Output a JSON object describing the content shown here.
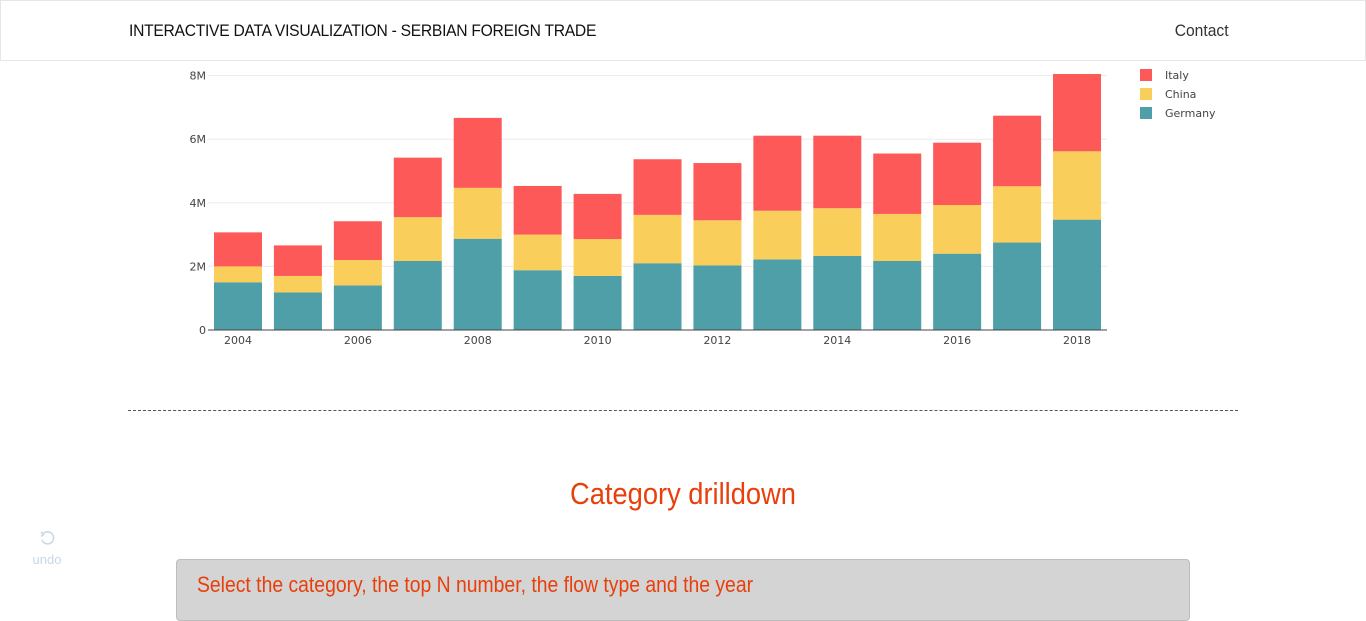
{
  "header": {
    "brand": "INTERACTIVE DATA VISUALIZATION - SERBIAN FOREIGN TRADE",
    "contact_label": "Contact"
  },
  "chart_data": {
    "type": "bar",
    "stacked": true,
    "x": [
      2004,
      2005,
      2006,
      2007,
      2008,
      2009,
      2010,
      2011,
      2012,
      2013,
      2014,
      2015,
      2016,
      2017,
      2018
    ],
    "series": [
      {
        "name": "Germany",
        "color": "#4e9fa8",
        "values": [
          1.5,
          1.18,
          1.4,
          2.17,
          2.87,
          1.88,
          1.7,
          2.1,
          2.03,
          2.22,
          2.33,
          2.17,
          2.4,
          2.75,
          3.47
        ]
      },
      {
        "name": "China",
        "color": "#f9ce5a",
        "values": [
          0.5,
          0.52,
          0.8,
          1.38,
          1.6,
          1.12,
          1.16,
          1.52,
          1.42,
          1.53,
          1.5,
          1.48,
          1.53,
          1.77,
          2.15
        ]
      },
      {
        "name": "Italy",
        "color": "#fd5959",
        "values": [
          1.07,
          0.96,
          1.22,
          1.87,
          2.2,
          1.53,
          1.42,
          1.75,
          1.8,
          2.36,
          2.28,
          1.9,
          1.96,
          2.22,
          2.43
        ]
      }
    ],
    "y_unit": "M",
    "y_ticks": [
      0,
      2,
      4,
      6,
      8
    ],
    "y_tick_labels": [
      "0",
      "2M",
      "4M",
      "6M",
      "8M"
    ],
    "x_tick_labels": [
      "2004",
      "2006",
      "2008",
      "2010",
      "2012",
      "2014",
      "2016",
      "2018"
    ],
    "ylim": [
      0,
      8.3
    ],
    "legend_order": [
      "Italy",
      "China",
      "Germany"
    ],
    "legend_position": "top-right",
    "grid": true
  },
  "section": {
    "title": "Category drilldown"
  },
  "undo": {
    "label": "undo"
  },
  "panel": {
    "title": "Select the category, the top N number, the flow type and the year"
  }
}
